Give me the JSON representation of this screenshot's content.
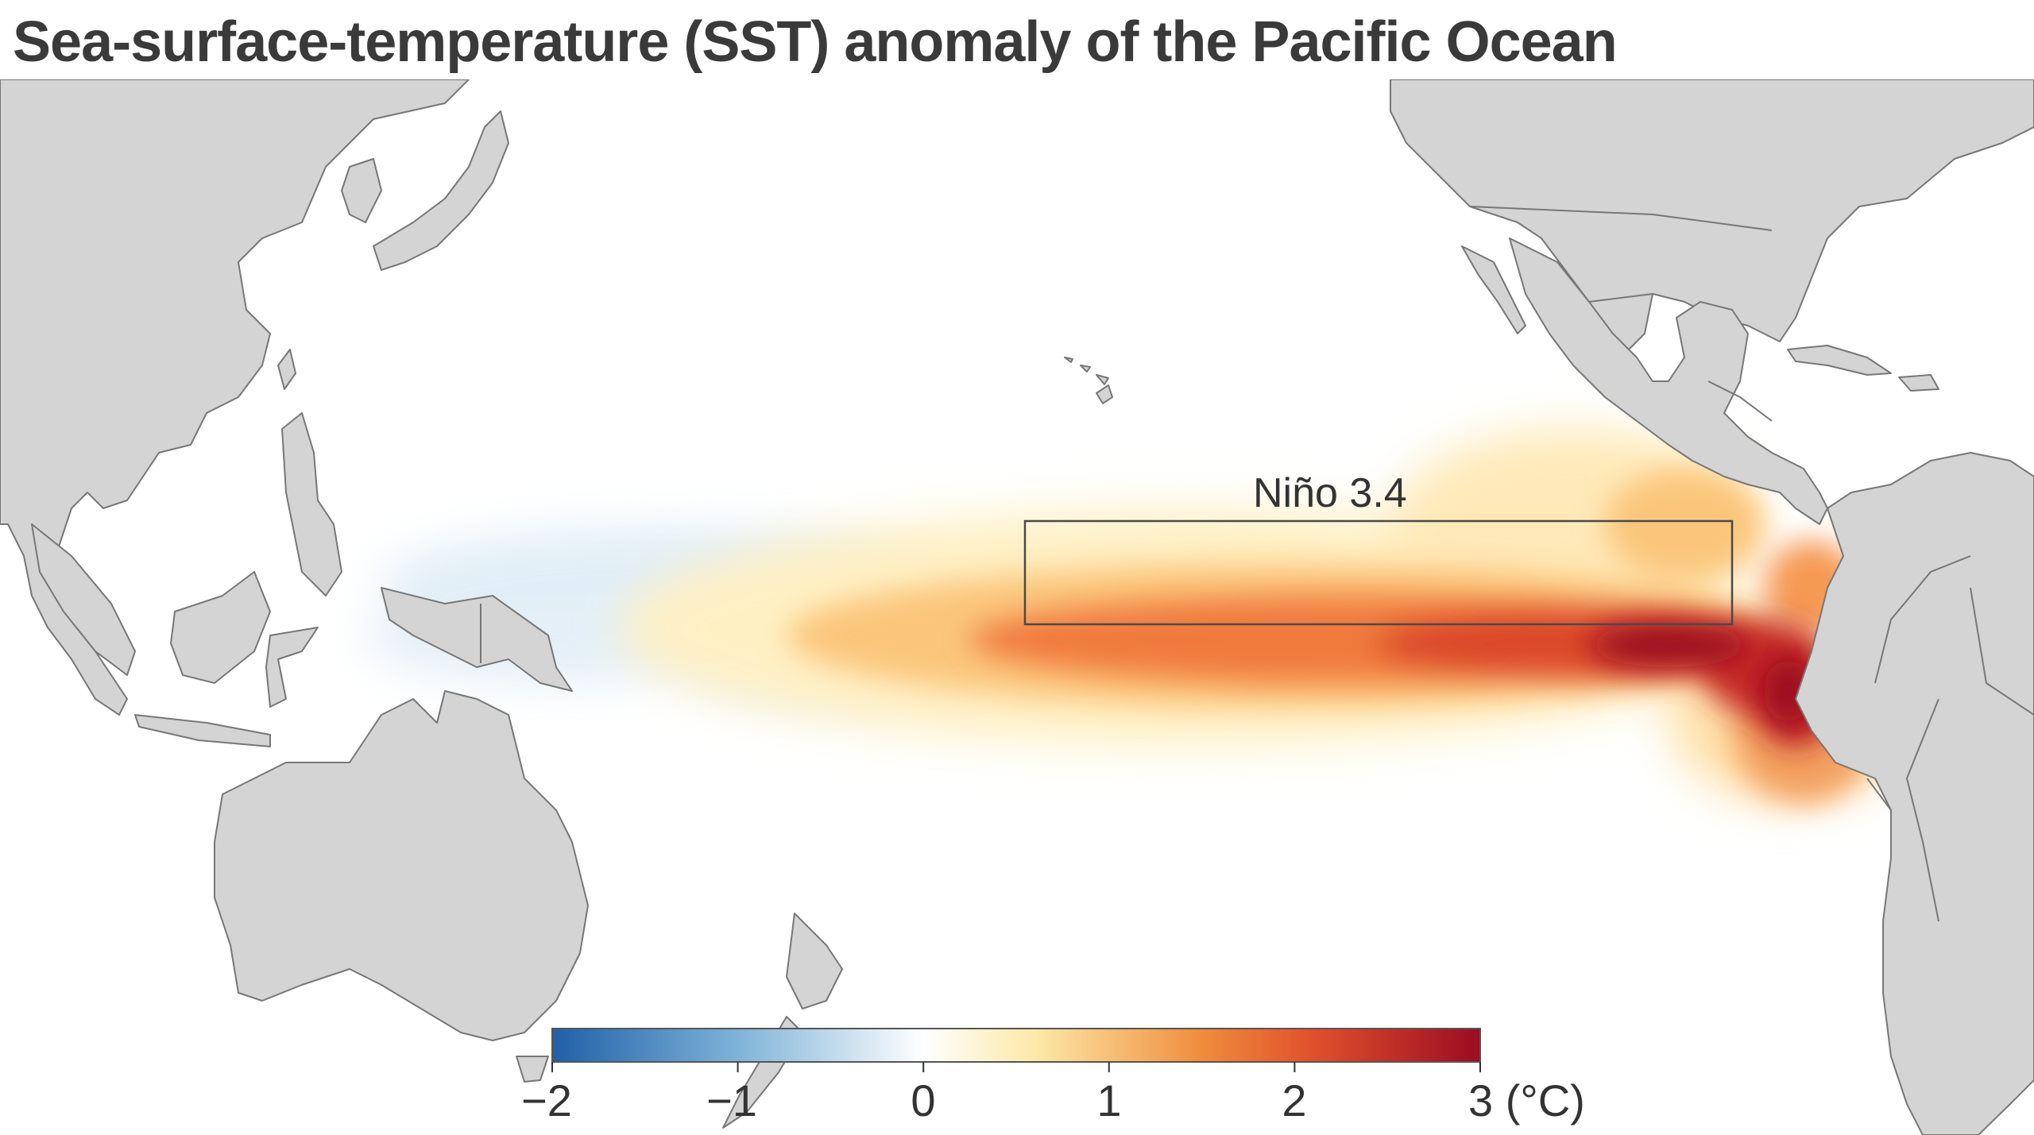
{
  "title": "Sea-surface-temperature (SST) anomaly of the Pacific Ocean",
  "region_label": "Niño 3.4",
  "colorbar": {
    "min": -2,
    "max": 3,
    "unit": "(°C)",
    "ticks": [
      {
        "value": -2,
        "label": "−2"
      },
      {
        "value": -1,
        "label": "−1"
      },
      {
        "value": 0,
        "label": "0"
      },
      {
        "value": 1,
        "label": "1"
      },
      {
        "value": 2,
        "label": "2"
      },
      {
        "value": 3,
        "label": "3 (°C)"
      }
    ],
    "colors": [
      "#1f5fa8",
      "#7fb3d8",
      "#ffffff",
      "#fde9a8",
      "#f08c3c",
      "#e0502c",
      "#9b0c23"
    ]
  }
}
